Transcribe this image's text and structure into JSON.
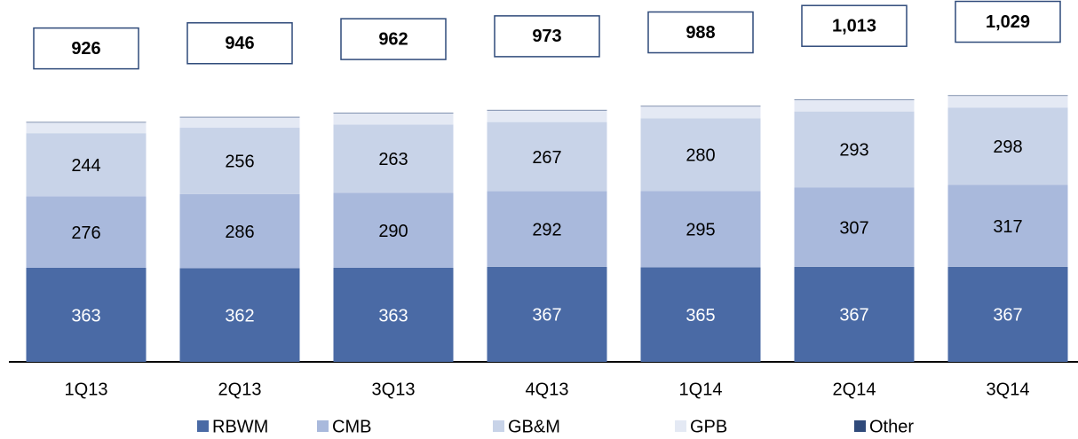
{
  "chart_data": {
    "type": "bar",
    "categories": [
      "1Q13",
      "2Q13",
      "3Q13",
      "4Q13",
      "1Q14",
      "2Q14",
      "3Q14"
    ],
    "series": [
      {
        "name": "RBWM",
        "color": "#4a6aa5",
        "values": [
          363,
          362,
          363,
          367,
          365,
          367,
          367
        ]
      },
      {
        "name": "CMB",
        "color": "#a9b9dc",
        "values": [
          276,
          286,
          290,
          292,
          295,
          307,
          317
        ]
      },
      {
        "name": "GB&M",
        "color": "#c8d3e8",
        "values": [
          244,
          256,
          263,
          267,
          280,
          293,
          298
        ]
      },
      {
        "name": "GPB",
        "color": "#e4e9f4",
        "values": [
          41,
          40,
          44,
          45,
          46,
          44,
          45
        ]
      },
      {
        "name": "Other",
        "color": "#2f4a7a",
        "values": [
          2,
          2,
          2,
          2,
          2,
          2,
          2
        ]
      }
    ],
    "totals": [
      926,
      946,
      962,
      973,
      988,
      1013,
      1029
    ],
    "total_labels": [
      "926",
      "946",
      "962",
      "973",
      "988",
      "1,013",
      "1,029"
    ],
    "stacked": true
  }
}
